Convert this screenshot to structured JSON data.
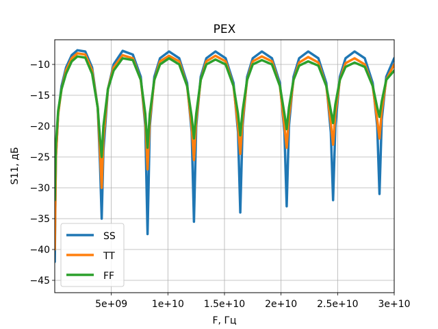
{
  "chart_data": {
    "type": "line",
    "title": "РЕХ",
    "xlabel": "F, Гц",
    "ylabel": "S11, дБ",
    "xlim": [
      0,
      30000000000
    ],
    "ylim": [
      -47,
      -6
    ],
    "x_ticks": [
      {
        "value": 5000000000,
        "label": "5e+09"
      },
      {
        "value": 10000000000,
        "label": "1e+10"
      },
      {
        "value": 15000000000,
        "label": "1.5e+10"
      },
      {
        "value": 20000000000,
        "label": "2e+10"
      },
      {
        "value": 25000000000,
        "label": "2.5e+10"
      },
      {
        "value": 30000000000,
        "label": "3e+10"
      }
    ],
    "y_ticks": [
      {
        "value": -10,
        "label": "−10"
      },
      {
        "value": -15,
        "label": "−15"
      },
      {
        "value": -20,
        "label": "−20"
      },
      {
        "value": -25,
        "label": "−25"
      },
      {
        "value": -30,
        "label": "−30"
      },
      {
        "value": -35,
        "label": "−35"
      },
      {
        "value": -40,
        "label": "−40"
      },
      {
        "value": -45,
        "label": "−45"
      }
    ],
    "grid": true,
    "legend_position": "lower-left",
    "series": [
      {
        "name": "SS",
        "color": "#1f77b4",
        "x": [
          0,
          100000000,
          300000000,
          600000000,
          1000000000,
          1500000000,
          2000000000,
          2700000000,
          3300000000,
          3800000000,
          4000000000,
          4150000000,
          4300000000,
          4700000000,
          5200000000,
          6000000000,
          6900000000,
          7600000000,
          8000000000,
          8200000000,
          8400000000,
          8800000000,
          9300000000,
          10100000000,
          11000000000,
          11700000000,
          12100000000,
          12300000000,
          12500000000,
          12900000000,
          13400000000,
          14200000000,
          15100000000,
          15800000000,
          16200000000,
          16400000000,
          16600000000,
          17000000000,
          17500000000,
          18300000000,
          19200000000,
          19900000000,
          20300000000,
          20500000000,
          20700000000,
          21100000000,
          21600000000,
          22400000000,
          23300000000,
          24000000000,
          24400000000,
          24600000000,
          24800000000,
          25200000000,
          25700000000,
          26500000000,
          27400000000,
          28100000000,
          28500000000,
          28700000000,
          28900000000,
          29300000000,
          30000000000
        ],
        "values": [
          -42,
          -25,
          -18,
          -13.5,
          -10.5,
          -8.5,
          -7.7,
          -7.9,
          -10.5,
          -17,
          -26,
          -35,
          -24,
          -14,
          -10,
          -7.8,
          -8.4,
          -12,
          -20,
          -37.5,
          -20,
          -12,
          -9,
          -7.9,
          -9,
          -13,
          -21,
          -35.5,
          -20,
          -12,
          -9,
          -7.9,
          -9,
          -13,
          -21,
          -34,
          -20,
          -12,
          -9,
          -7.9,
          -9,
          -13,
          -21,
          -33,
          -20,
          -12,
          -9,
          -7.9,
          -9,
          -13,
          -21,
          -32,
          -20,
          -12,
          -9,
          -7.9,
          -9,
          -13,
          -20,
          -31,
          -19,
          -12,
          -9
        ]
      },
      {
        "name": "TT",
        "color": "#ff7f0e",
        "x": [
          0,
          100000000,
          300000000,
          600000000,
          1000000000,
          1500000000,
          2000000000,
          2700000000,
          3300000000,
          3800000000,
          4000000000,
          4150000000,
          4300000000,
          4700000000,
          5200000000,
          6000000000,
          6900000000,
          7600000000,
          8000000000,
          8200000000,
          8400000000,
          8800000000,
          9300000000,
          10100000000,
          11000000000,
          11700000000,
          12100000000,
          12300000000,
          12500000000,
          12900000000,
          13400000000,
          14200000000,
          15100000000,
          15800000000,
          16200000000,
          16400000000,
          16600000000,
          17000000000,
          17500000000,
          18300000000,
          19200000000,
          19900000000,
          20300000000,
          20500000000,
          20700000000,
          21100000000,
          21600000000,
          22400000000,
          23300000000,
          24000000000,
          24400000000,
          24600000000,
          24800000000,
          25200000000,
          25700000000,
          26500000000,
          27400000000,
          28100000000,
          28500000000,
          28700000000,
          28900000000,
          29300000000,
          30000000000
        ],
        "values": [
          -40,
          -25,
          -18,
          -14,
          -11,
          -9,
          -8.2,
          -8.4,
          -11,
          -17,
          -24,
          -30,
          -22,
          -14,
          -10.5,
          -8.5,
          -9,
          -12.5,
          -19,
          -27,
          -19,
          -12.5,
          -9.5,
          -8.6,
          -9.5,
          -13.5,
          -20,
          -25.5,
          -19,
          -12.5,
          -9.5,
          -8.6,
          -9.5,
          -13.5,
          -20,
          -24.5,
          -19,
          -12.5,
          -9.5,
          -8.7,
          -9.5,
          -13.5,
          -20,
          -23.5,
          -18.5,
          -12.5,
          -9.7,
          -8.8,
          -9.7,
          -13.5,
          -19.5,
          -23,
          -18,
          -12.5,
          -9.8,
          -9,
          -10,
          -13.5,
          -19,
          -22,
          -17.5,
          -12.5,
          -10
        ]
      },
      {
        "name": "FF",
        "color": "#2ca02c",
        "x": [
          0,
          100000000,
          300000000,
          600000000,
          1000000000,
          1500000000,
          2000000000,
          2700000000,
          3300000000,
          3800000000,
          4000000000,
          4150000000,
          4300000000,
          4700000000,
          5200000000,
          6000000000,
          6900000000,
          7600000000,
          8000000000,
          8200000000,
          8400000000,
          8800000000,
          9300000000,
          10100000000,
          11000000000,
          11700000000,
          12100000000,
          12300000000,
          12500000000,
          12900000000,
          13400000000,
          14200000000,
          15100000000,
          15800000000,
          16200000000,
          16400000000,
          16600000000,
          17000000000,
          17500000000,
          18300000000,
          19200000000,
          19900000000,
          20300000000,
          20500000000,
          20700000000,
          21100000000,
          21600000000,
          22400000000,
          23300000000,
          24000000000,
          24400000000,
          24600000000,
          24800000000,
          25200000000,
          25700000000,
          26500000000,
          27400000000,
          28100000000,
          28500000000,
          28700000000,
          28900000000,
          29300000000,
          30000000000
        ],
        "values": [
          -32,
          -23,
          -17.5,
          -14,
          -11.5,
          -9.5,
          -8.7,
          -8.9,
          -11.5,
          -17,
          -22,
          -25,
          -20,
          -14,
          -11,
          -9,
          -9.3,
          -12.5,
          -18,
          -23.5,
          -18,
          -12.5,
          -10,
          -9,
          -10,
          -13.5,
          -18.5,
          -22,
          -18,
          -12.5,
          -10,
          -9.2,
          -10,
          -13.5,
          -18,
          -21.5,
          -17.5,
          -12.5,
          -10,
          -9.3,
          -10,
          -13.5,
          -18,
          -20.5,
          -17,
          -12.5,
          -10.2,
          -9.5,
          -10.2,
          -13.5,
          -17.5,
          -19.5,
          -16.5,
          -12.5,
          -10.4,
          -9.7,
          -10.4,
          -13.5,
          -17,
          -18.5,
          -16,
          -12.5,
          -11
        ]
      }
    ]
  }
}
